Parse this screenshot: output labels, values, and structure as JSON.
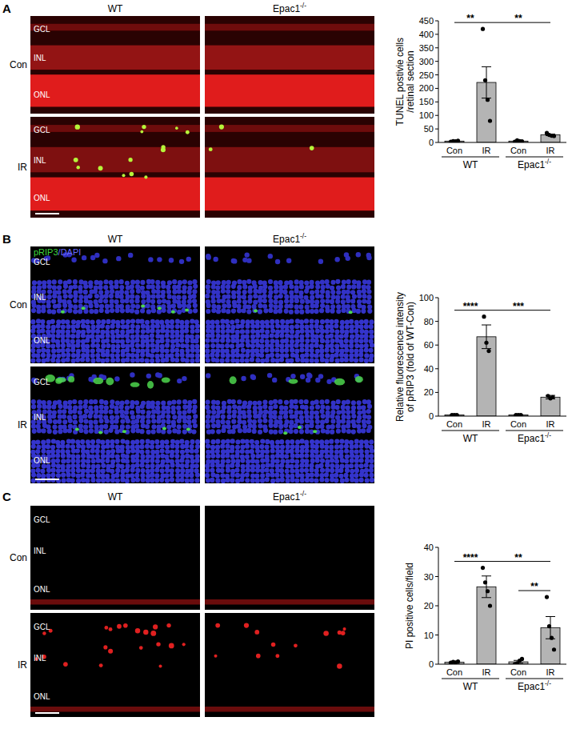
{
  "chart_data": [
    {
      "type": "bar",
      "y_label": [
        "TUNEL postivie cells",
        "/retinal section"
      ],
      "categories": [
        "Con",
        "IR",
        "Con",
        "IR"
      ],
      "group_labels": [
        "WT",
        "Epac1-/-"
      ],
      "values": [
        5,
        222,
        5,
        28
      ],
      "errors": [
        1,
        58,
        1,
        3
      ],
      "points": [
        [
          3,
          5,
          4,
          6
        ],
        [
          420,
          230,
          158,
          80
        ],
        [
          3,
          8,
          5,
          4
        ],
        [
          35,
          28,
          25,
          24
        ]
      ],
      "significance": [
        {
          "from": 0,
          "to": 1,
          "label": "**"
        },
        {
          "from": 1,
          "to": 3,
          "label": "**"
        }
      ],
      "color": "#b4b4b4",
      "ylim": [
        0,
        450
      ],
      "yticks": [
        0,
        50,
        100,
        150,
        200,
        250,
        300,
        350,
        400,
        450
      ],
      "grid": false
    },
    {
      "type": "bar",
      "y_label": [
        "Relative fluorescence intensity",
        "of pRIP3 (fold of WT-Con)"
      ],
      "categories": [
        "Con",
        "IR",
        "Con",
        "IR"
      ],
      "group_labels": [
        "WT",
        "Epac1-/-"
      ],
      "values": [
        1,
        67,
        1,
        16
      ],
      "errors": [
        0.2,
        10,
        0.2,
        1.5
      ],
      "points": [
        [
          1,
          1,
          1
        ],
        [
          84,
          62,
          55
        ],
        [
          1,
          1,
          1
        ],
        [
          17,
          15,
          16
        ]
      ],
      "significance": [
        {
          "from": 0,
          "to": 1,
          "label": "****"
        },
        {
          "from": 1,
          "to": 3,
          "label": "***"
        }
      ],
      "color": "#b4b4b4",
      "ylim": [
        0,
        100
      ],
      "yticks": [
        0,
        20,
        40,
        60,
        80,
        100
      ],
      "grid": false
    },
    {
      "type": "bar",
      "y_label": [
        "PI positive cells/field"
      ],
      "categories": [
        "Con",
        "IR",
        "Con",
        "IR"
      ],
      "group_labels": [
        "WT",
        "Epac1-/-"
      ],
      "values": [
        0.7,
        26.5,
        0.8,
        12.5
      ],
      "errors": [
        0.2,
        3.7,
        0.5,
        3.8
      ],
      "points": [
        [
          0.5,
          0.8,
          0.6,
          0.9
        ],
        [
          33,
          28,
          25,
          20
        ],
        [
          0,
          0.3,
          1.2,
          1.8
        ],
        [
          23,
          13,
          9,
          5
        ]
      ],
      "significance": [
        {
          "from": 0,
          "to": 1,
          "label": "****"
        },
        {
          "from": 1,
          "to": 3,
          "label": "**"
        },
        {
          "from": 2,
          "to": 3,
          "label": "**"
        }
      ],
      "color": "#b4b4b4",
      "ylim": [
        0,
        40
      ],
      "yticks": [
        0,
        10,
        20,
        30,
        40
      ],
      "grid": false
    }
  ],
  "panels": [
    {
      "letter": "A",
      "columns": [
        "WT",
        "Epac1-/-"
      ],
      "rows": [
        "Con",
        "IR"
      ],
      "layers": [
        "GCL",
        "INL",
        "ONL"
      ]
    },
    {
      "letter": "B",
      "columns": [
        "WT",
        "Epac1-/-"
      ],
      "rows": [
        "Con",
        "IR"
      ],
      "layers": [
        "GCL",
        "INL",
        "ONL"
      ],
      "stain": [
        {
          "text": "pRIP3",
          "color": "#3ed43e"
        },
        {
          "text": "/DAPI",
          "color": "#6a6aff"
        }
      ]
    },
    {
      "letter": "C",
      "columns": [
        "WT",
        "Epac1-/-"
      ],
      "rows": [
        "Con",
        "IR"
      ],
      "layers": [
        "GCL",
        "INL",
        "ONL"
      ]
    }
  ]
}
